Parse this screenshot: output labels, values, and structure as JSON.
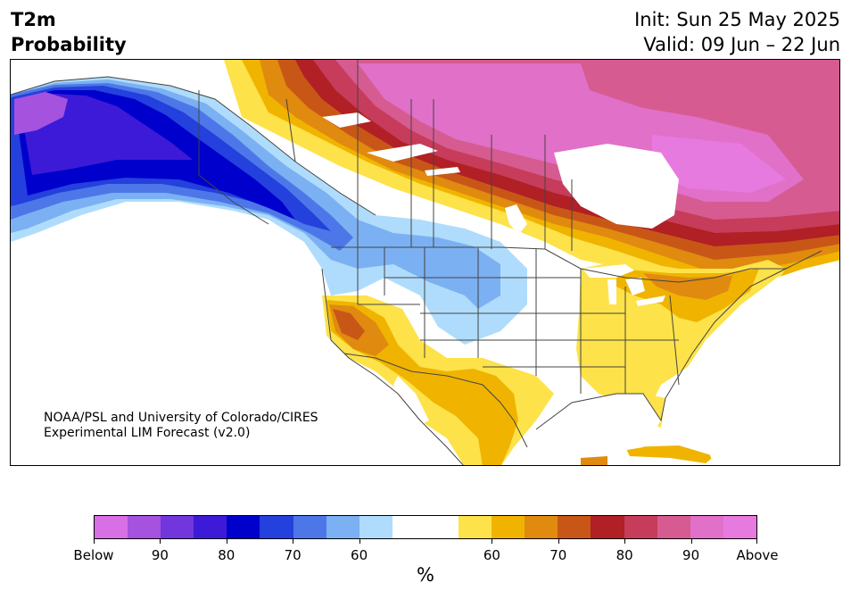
{
  "header": {
    "title_line1": "T2m",
    "title_line2": "Probability",
    "init_text": "Init: Sun 25 May 2025",
    "valid_text": "Valid: 09 Jun – 22 Jun"
  },
  "credit": {
    "line1": "NOAA/PSL and University of Colorado/CIRES",
    "line2": "Experimental LIM Forecast (v2.0)"
  },
  "colorbar": {
    "colors": [
      "#d86fe4",
      "#a552df",
      "#7137dc",
      "#3d1ad8",
      "#0000cc",
      "#2440dd",
      "#4d77e8",
      "#7bb1f2",
      "#afdcfc",
      "#ffffff",
      "#ffffff",
      "#fde24a",
      "#f0b400",
      "#e08a10",
      "#c85717",
      "#b02025",
      "#c63c5a",
      "#d65b90",
      "#e070c8",
      "#e77ade"
    ],
    "tick_labels": [
      "Below",
      "90",
      "80",
      "70",
      "60",
      "60",
      "70",
      "80",
      "90",
      "Above"
    ],
    "unit_label": "%"
  },
  "map": {
    "colors": {
      "below_90": "#a552df",
      "below_85": "#3d1ad8",
      "below_80": "#0000cc",
      "below_75": "#2440dd",
      "below_70": "#4d77e8",
      "below_65": "#7bb1f2",
      "below_60": "#afdcfc",
      "above_55": "#fde24a",
      "above_60": "#f0b400",
      "above_65": "#e08a10",
      "above_70": "#c85717",
      "above_75": "#b02025",
      "above_80": "#c63c5a",
      "above_85": "#d65b90",
      "above_90": "#e070c8",
      "above_95": "#e77ade",
      "water": "#ffffff",
      "borders": "#444444"
    }
  }
}
